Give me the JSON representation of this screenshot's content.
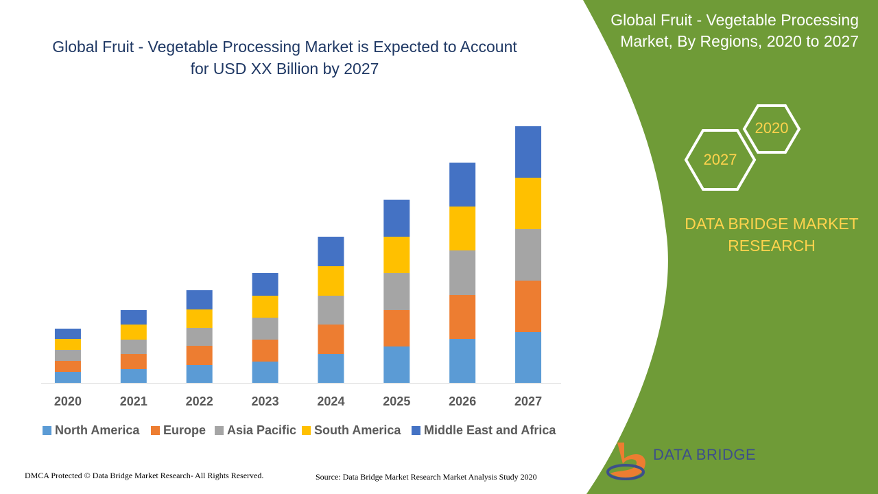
{
  "chart_data": {
    "type": "stacked_bar",
    "title": "Global Fruit - Vegetable Processing Market is Expected to Account for USD XX Billion by 2027",
    "categories": [
      "2020",
      "2021",
      "2022",
      "2023",
      "2024",
      "2025",
      "2026",
      "2027"
    ],
    "series": [
      {
        "name": "North America",
        "color": "#5b9bd5",
        "values": [
          16,
          20,
          26,
          31,
          42,
          53,
          64,
          74
        ]
      },
      {
        "name": "Europe",
        "color": "#ed7d31",
        "values": [
          16,
          22,
          28,
          32,
          43,
          53,
          64,
          75
        ]
      },
      {
        "name": "Asia Pacific",
        "color": "#a5a5a5",
        "values": [
          16,
          21,
          26,
          32,
          42,
          54,
          65,
          75
        ]
      },
      {
        "name": "South America",
        "color": "#ffc000",
        "values": [
          16,
          22,
          27,
          32,
          43,
          53,
          64,
          75
        ]
      },
      {
        "name": "Middle East and Africa",
        "color": "#4472c4",
        "values": [
          15,
          21,
          28,
          33,
          43,
          54,
          64,
          75
        ]
      }
    ],
    "ylim": [
      0,
      400
    ],
    "legend": "bottom"
  },
  "side_panel": {
    "title": "Global Fruit - Vegetable Processing Market, By Regions, 2020 to 2027",
    "badges": [
      "2020",
      "2027"
    ],
    "brand": "DATA BRIDGE MARKET RESEARCH"
  },
  "logo": "DATA BRIDGE",
  "footer": {
    "left": "DMCA Protected © Data Bridge Market Research- All Rights Reserved.",
    "right": "Source: Data Bridge Market Research Market Analysis Study 2020"
  }
}
